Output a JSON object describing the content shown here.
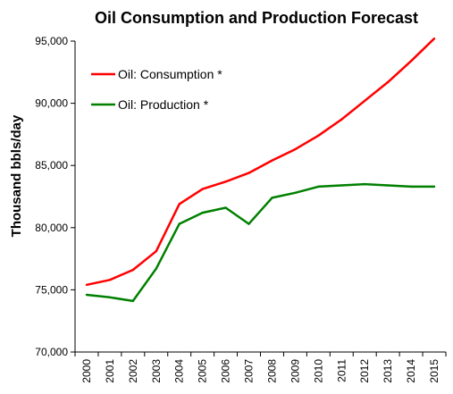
{
  "chart_data": {
    "type": "line",
    "title": "Oil Consumption and Production Forecast",
    "xlabel": "",
    "ylabel": "Thousand bbls/day",
    "x": [
      "2000",
      "2001",
      "2002",
      "2003",
      "2004",
      "2005",
      "2006",
      "2007",
      "2008",
      "2009",
      "2010",
      "2011",
      "2012",
      "2013",
      "2014",
      "2015"
    ],
    "ylim": [
      70000,
      95000
    ],
    "yticks": [
      "70,000",
      "75,000",
      "80,000",
      "85,000",
      "90,000",
      "95,000"
    ],
    "grid": false,
    "legend_position": "top-left",
    "series": [
      {
        "name": "Oil: Consumption *",
        "color": "#ff0000",
        "values": [
          75400,
          75800,
          76600,
          78100,
          81900,
          83100,
          83700,
          84400,
          85400,
          86300,
          87400,
          88700,
          90200,
          91700,
          93400,
          95200
        ]
      },
      {
        "name": "Oil: Production *",
        "color": "#008000",
        "values": [
          74600,
          74400,
          74100,
          76700,
          80300,
          81200,
          81600,
          80300,
          82400,
          82800,
          83300,
          83400,
          83500,
          83400,
          83300,
          83300
        ]
      }
    ]
  }
}
